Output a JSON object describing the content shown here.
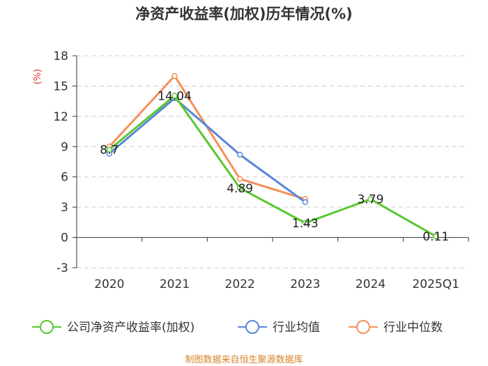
{
  "chart_data": {
    "type": "line",
    "title": "净资产收益率(加权)历年情况(%)",
    "ylabel": "(%)",
    "xlabel": "",
    "categories": [
      "2020",
      "2021",
      "2022",
      "2023",
      "2024",
      "2025Q1"
    ],
    "ylim": [
      -3,
      18
    ],
    "yticks": [
      -3,
      0,
      3,
      6,
      9,
      12,
      15,
      18
    ],
    "grid": true,
    "legend_position": "bottom",
    "series": [
      {
        "name": "公司净资产收益率(加权)",
        "color": "#5ac72e",
        "values": [
          8.7,
          14.04,
          4.89,
          1.43,
          3.79,
          0.11
        ],
        "labels": [
          "8.7",
          "14.04",
          "4.89",
          "1.43",
          "3.79",
          "0.11"
        ]
      },
      {
        "name": "行业均值",
        "color": "#5a85d9",
        "values": [
          8.3,
          13.8,
          8.2,
          3.5,
          null,
          null
        ]
      },
      {
        "name": "行业中位数",
        "color": "#f5905a",
        "values": [
          9.0,
          16.0,
          5.8,
          3.8,
          null,
          null
        ]
      }
    ]
  },
  "source": "制图数据来自恒生聚源数据库"
}
